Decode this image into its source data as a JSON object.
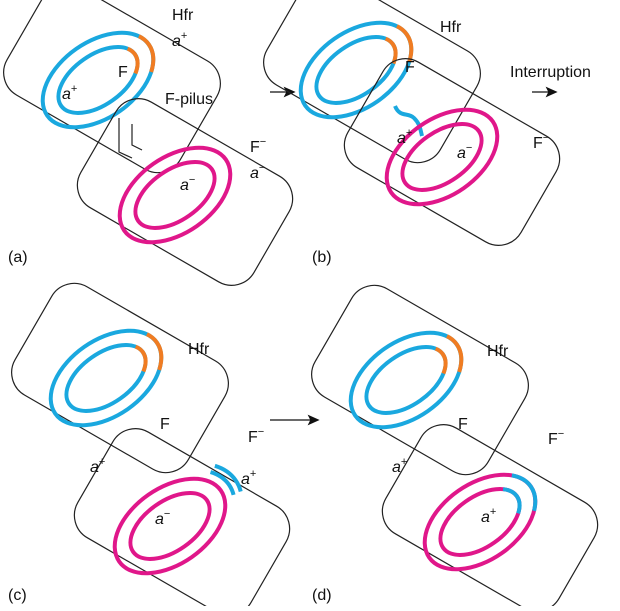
{
  "panels": [
    {
      "label": "(a)",
      "texts": [
        {
          "text": "Hfr"
        },
        {
          "base": "a",
          "sup": "+",
          "italic": true
        },
        {
          "text": "F"
        },
        {
          "base": "a",
          "sup": "+",
          "italic": true
        },
        {
          "text": "F-pilus"
        },
        {
          "base": "F",
          "sup": "−"
        },
        {
          "base": "a",
          "sup": "−",
          "italic": true
        },
        {
          "base": "a",
          "sup": "−",
          "italic": true
        }
      ]
    },
    {
      "label": "(b)",
      "texts": [
        {
          "text": "Hfr"
        },
        {
          "text": "F"
        },
        {
          "text": "Interruption"
        },
        {
          "base": "a",
          "sup": "+",
          "italic": true
        },
        {
          "base": "a",
          "sup": "−",
          "italic": true
        },
        {
          "base": "F",
          "sup": "−"
        }
      ]
    },
    {
      "label": "(c)",
      "texts": [
        {
          "text": "Hfr"
        },
        {
          "text": "F"
        },
        {
          "base": "a",
          "sup": "+",
          "italic": true
        },
        {
          "base": "F",
          "sup": "−"
        },
        {
          "base": "a",
          "sup": "+",
          "italic": true
        },
        {
          "base": "a",
          "sup": "−",
          "italic": true
        }
      ]
    },
    {
      "label": "(d)",
      "texts": [
        {
          "text": "Hfr"
        },
        {
          "text": "F"
        },
        {
          "base": "a",
          "sup": "+",
          "italic": true
        },
        {
          "base": "F",
          "sup": "−"
        },
        {
          "base": "a",
          "sup": "+",
          "italic": true
        }
      ]
    }
  ]
}
